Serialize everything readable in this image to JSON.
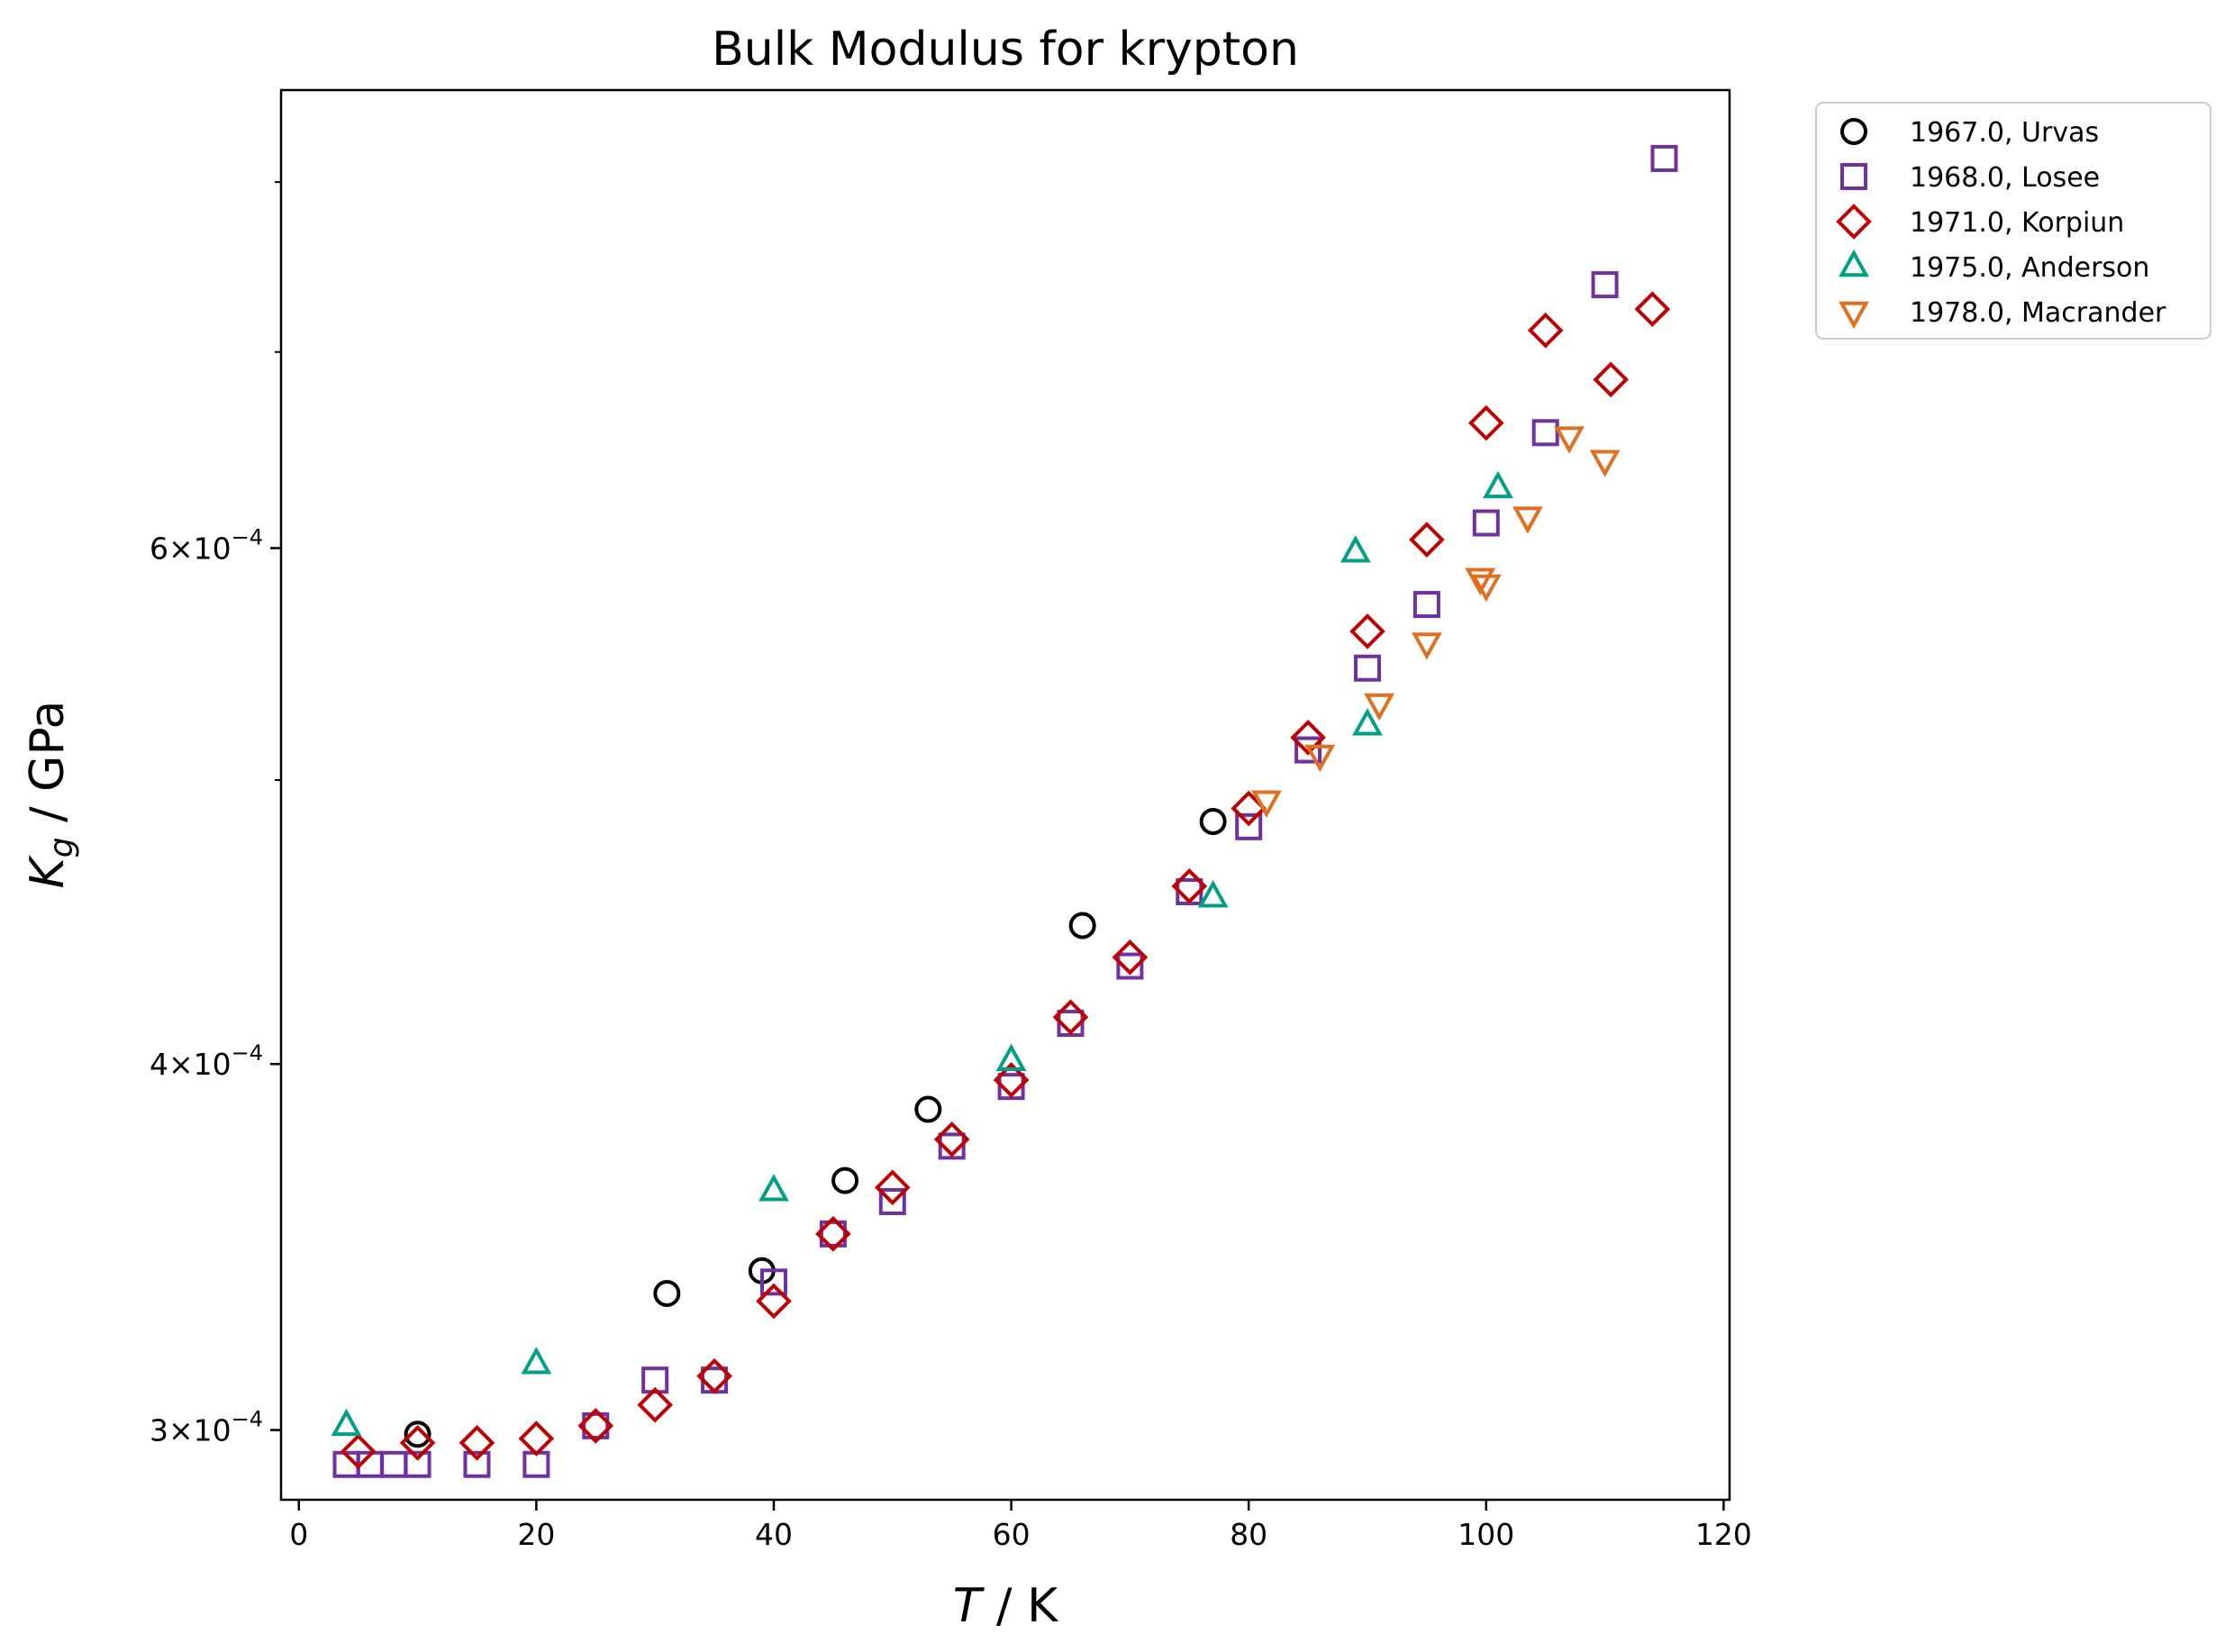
{
  "chart_data": {
    "type": "scatter",
    "title": "Bulk Modulus for krypton",
    "xlabel_var": "T",
    "xlabel_unit": " / K",
    "ylabel_var": "K",
    "ylabel_sub": "g",
    "ylabel_unit": " / GPa",
    "yscale": "log",
    "xlim": [
      -1.5,
      120.5
    ],
    "ylim": [
      0.000284,
      0.00086
    ],
    "grid": false,
    "legend_position": "outside-top-right",
    "x_ticks": [
      0,
      20,
      40,
      60,
      80,
      100,
      120
    ],
    "x_tick_labels": [
      "0",
      "20",
      "40",
      "60",
      "80",
      "100",
      "120"
    ],
    "y_major_ticks": [
      0.0003,
      0.0004,
      0.0006
    ],
    "y_major_tick_labels": [
      {
        "mant": "3",
        "exp": "−4"
      },
      {
        "mant": "4",
        "exp": "−4"
      },
      {
        "mant": "6",
        "exp": "−4"
      }
    ],
    "y_minor_ticks": [
      0.0005,
      0.0007,
      0.0008
    ],
    "series": [
      {
        "name": "1967.0, Urvas",
        "marker": "circle",
        "color": "#000000",
        "points": [
          [
            10,
            0.000299
          ],
          [
            31,
            0.000334
          ],
          [
            39,
            0.00034
          ],
          [
            46,
            0.000365
          ],
          [
            53,
            0.000386
          ],
          [
            66,
            0.000446
          ],
          [
            77,
            0.000484
          ]
        ]
      },
      {
        "name": "1968.0, Losee",
        "marker": "square",
        "color": "#7030a0",
        "points": [
          [
            4,
            0.000292
          ],
          [
            6,
            0.000292
          ],
          [
            8,
            0.000292
          ],
          [
            10,
            0.000292
          ],
          [
            15,
            0.000292
          ],
          [
            20,
            0.000292
          ],
          [
            25,
            0.000301
          ],
          [
            30,
            0.000312
          ],
          [
            35,
            0.000312
          ],
          [
            40,
            0.000337
          ],
          [
            45,
            0.00035
          ],
          [
            50,
            0.000359
          ],
          [
            55,
            0.000375
          ],
          [
            60,
            0.000393
          ],
          [
            65,
            0.000413
          ],
          [
            70,
            0.000432
          ],
          [
            75,
            0.000458
          ],
          [
            80,
            0.000482
          ],
          [
            85,
            0.000512
          ],
          [
            90,
            0.000546
          ],
          [
            95,
            0.000574
          ],
          [
            100,
            0.000612
          ],
          [
            105,
            0.000657
          ],
          [
            110,
            0.000738
          ],
          [
            115,
            0.000815
          ]
        ]
      },
      {
        "name": "1971.0, Korpiun",
        "marker": "diamond",
        "color": "#c00000",
        "points": [
          [
            5,
            0.000295
          ],
          [
            10,
            0.000297
          ],
          [
            15,
            0.000297
          ],
          [
            20,
            0.000298
          ],
          [
            25,
            0.000301
          ],
          [
            30,
            0.000306
          ],
          [
            35,
            0.000313
          ],
          [
            40,
            0.000332
          ],
          [
            45,
            0.00035
          ],
          [
            50,
            0.000363
          ],
          [
            55,
            0.000377
          ],
          [
            60,
            0.000395
          ],
          [
            65,
            0.000415
          ],
          [
            70,
            0.000435
          ],
          [
            75,
            0.00046
          ],
          [
            80,
            0.000489
          ],
          [
            85,
            0.000517
          ],
          [
            90,
            0.000562
          ],
          [
            95,
            0.000604
          ],
          [
            100,
            0.000662
          ],
          [
            105,
            0.000712
          ],
          [
            110.5,
            0.000685
          ],
          [
            114,
            0.000724
          ]
        ]
      },
      {
        "name": "1975.0, Anderson",
        "marker": "triangle-up",
        "color": "#00a087",
        "points": [
          [
            4,
            0.000301
          ],
          [
            20,
            0.000316
          ],
          [
            40,
            0.000362
          ],
          [
            60,
            0.000401
          ],
          [
            77,
            0.000456
          ],
          [
            89,
            0.000598
          ],
          [
            90,
            0.000522
          ],
          [
            101,
            0.000629
          ]
        ]
      },
      {
        "name": "1978.0, Macrander",
        "marker": "triangle-down",
        "color": "#e07020",
        "points": [
          [
            81.5,
            0.000492
          ],
          [
            86,
            0.00051
          ],
          [
            91,
            0.000531
          ],
          [
            95,
            0.000557
          ],
          [
            99.5,
            0.000586
          ],
          [
            100,
            0.000583
          ],
          [
            103.5,
            0.000615
          ],
          [
            107,
            0.000655
          ],
          [
            110,
            0.000643
          ]
        ]
      }
    ]
  }
}
